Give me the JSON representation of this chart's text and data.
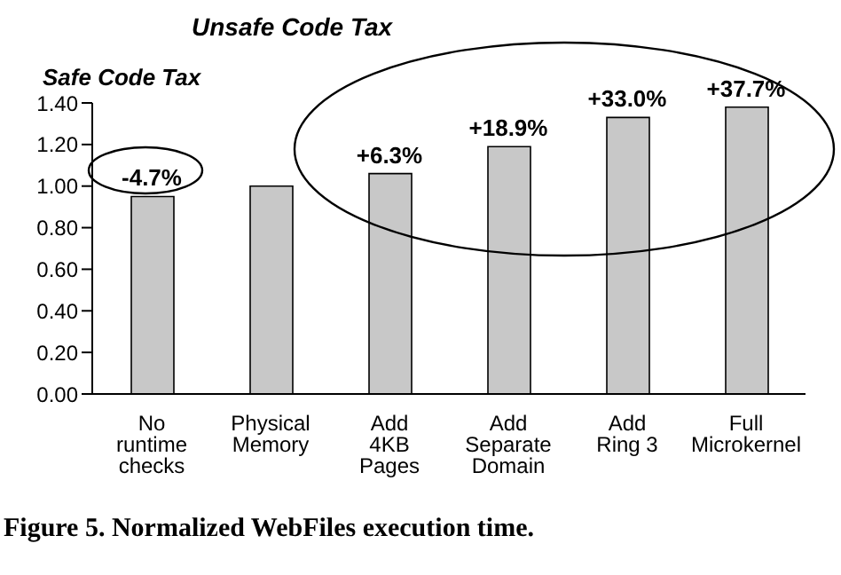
{
  "chart_data": {
    "type": "bar",
    "categories": [
      "No runtime checks",
      "Physical Memory",
      "Add 4KB Pages",
      "Add Separate Domain",
      "Add Ring 3",
      "Full Microkernel"
    ],
    "values": [
      0.95,
      1.0,
      1.06,
      1.19,
      1.33,
      1.38
    ],
    "color": "#c8c8c8",
    "ylim": [
      0,
      1.4
    ],
    "yticks": [
      {
        "value": 0,
        "label": "0.00"
      },
      {
        "value": 0.2,
        "label": "0.20"
      },
      {
        "value": 0.4,
        "label": "0.40"
      },
      {
        "value": 0.6,
        "label": "0.60"
      },
      {
        "value": 0.8,
        "label": "0.80"
      },
      {
        "value": 1.0,
        "label": "1.00"
      },
      {
        "value": 1.2,
        "label": "1.20"
      },
      {
        "value": 1.4,
        "label": "1.40"
      }
    ],
    "grid": false,
    "legend": false,
    "annotations": [
      "Safe Code Tax",
      "Unsafe Code Tax",
      "Figure 5. Normalized WebFiles execution time.",
      {
        "text": "-4.7%",
        "x": "No runtime checks",
        "y": 0.95
      },
      {
        "text": "+6.3%",
        "x": "Add 4KB Pages",
        "y": 1.06
      },
      {
        "text": "+18.9%",
        "x": "Add Separate Domain",
        "y": 1.19
      },
      {
        "text": "+33.0%",
        "x": "Add Ring 3",
        "y": 1.33
      },
      {
        "text": "+37.7%",
        "x": "Full Microkernel",
        "y": 1.38
      }
    ]
  }
}
